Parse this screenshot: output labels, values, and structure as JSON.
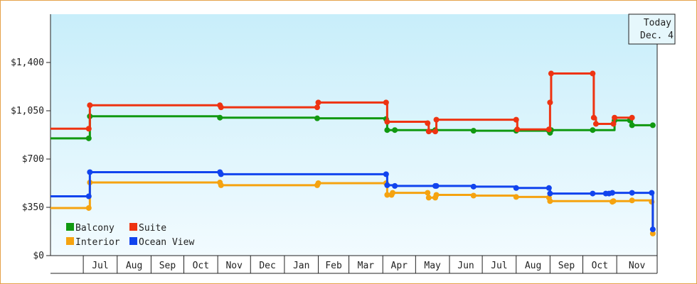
{
  "chart_data": {
    "type": "line",
    "step": true,
    "title": "",
    "xlabel": "",
    "ylabel": "",
    "ylim": [
      0,
      1750
    ],
    "xlim": [
      "2014-06-01",
      "2015-12-08"
    ],
    "yticks": [
      {
        "value": 0,
        "label": "$0"
      },
      {
        "value": 350,
        "label": "$350"
      },
      {
        "value": 700,
        "label": "$700"
      },
      {
        "value": 1050,
        "label": "$1,050"
      },
      {
        "value": 1400,
        "label": "$1,400"
      }
    ],
    "month_ticks": [
      {
        "date": "2014-07-01",
        "label": "Jul"
      },
      {
        "date": "2014-08-01",
        "label": "Aug"
      },
      {
        "date": "2014-09-01",
        "label": "Sep"
      },
      {
        "date": "2014-10-01",
        "label": "Oct"
      },
      {
        "date": "2014-11-01",
        "label": "Nov"
      },
      {
        "date": "2014-12-01",
        "label": "Dec"
      },
      {
        "date": "2015-01-01",
        "label": "Jan"
      },
      {
        "date": "2015-02-01",
        "label": "Feb"
      },
      {
        "date": "2015-03-01",
        "label": "Mar"
      },
      {
        "date": "2015-04-01",
        "label": "Apr"
      },
      {
        "date": "2015-05-01",
        "label": "May"
      },
      {
        "date": "2015-06-01",
        "label": "Jun"
      },
      {
        "date": "2015-07-01",
        "label": "Jul"
      },
      {
        "date": "2015-08-01",
        "label": "Aug"
      },
      {
        "date": "2015-09-01",
        "label": "Sep"
      },
      {
        "date": "2015-10-01",
        "label": "Oct"
      },
      {
        "date": "2015-11-01",
        "label": "Nov"
      }
    ],
    "today": {
      "line1": "Today",
      "line2": "Dec. 4",
      "date": "2015-12-04"
    },
    "legend_position": "bottom-left",
    "grid": false,
    "series": [
      {
        "name": "Balcony",
        "color": "#119911",
        "points": [
          [
            "2014-06-01",
            850
          ],
          [
            "2014-07-06",
            850
          ],
          [
            "2014-07-07",
            1010
          ],
          [
            "2014-11-03",
            1000
          ],
          [
            "2015-01-31",
            995
          ],
          [
            "2015-04-04",
            990
          ],
          [
            "2015-04-05",
            910
          ],
          [
            "2015-04-12",
            910
          ],
          [
            "2015-05-19",
            910
          ],
          [
            "2015-06-23",
            905
          ],
          [
            "2015-08-01",
            905
          ],
          [
            "2015-08-31",
            905
          ],
          [
            "2015-09-01",
            890
          ],
          [
            "2015-09-02",
            910
          ],
          [
            "2015-10-10",
            910
          ],
          [
            "2015-10-30",
            980
          ],
          [
            "2015-11-13",
            980
          ],
          [
            "2015-11-15",
            945
          ],
          [
            "2015-12-04",
            945
          ]
        ]
      },
      {
        "name": "Suite",
        "color": "#ee3311",
        "points": [
          [
            "2014-06-01",
            920
          ],
          [
            "2014-07-06",
            920
          ],
          [
            "2014-07-07",
            1090
          ],
          [
            "2014-11-03",
            1090
          ],
          [
            "2014-11-04",
            1075
          ],
          [
            "2015-01-31",
            1075
          ],
          [
            "2015-02-01",
            1110
          ],
          [
            "2015-04-04",
            1110
          ],
          [
            "2015-04-05",
            970
          ],
          [
            "2015-05-12",
            960
          ],
          [
            "2015-05-13",
            900
          ],
          [
            "2015-05-19",
            900
          ],
          [
            "2015-05-20",
            985
          ],
          [
            "2015-08-01",
            985
          ],
          [
            "2015-08-02",
            915
          ],
          [
            "2015-08-31",
            915
          ],
          [
            "2015-09-01",
            1110
          ],
          [
            "2015-09-02",
            1320
          ],
          [
            "2015-10-10",
            1320
          ],
          [
            "2015-10-11",
            1000
          ],
          [
            "2015-10-13",
            955
          ],
          [
            "2015-10-29",
            955
          ],
          [
            "2015-10-30",
            1000
          ],
          [
            "2015-11-15",
            1000
          ]
        ]
      },
      {
        "name": "Interior",
        "color": "#f5a310",
        "points": [
          [
            "2014-06-01",
            345
          ],
          [
            "2014-07-06",
            345
          ],
          [
            "2014-07-07",
            530
          ],
          [
            "2014-11-03",
            530
          ],
          [
            "2014-11-04",
            510
          ],
          [
            "2015-01-31",
            510
          ],
          [
            "2015-02-01",
            525
          ],
          [
            "2015-04-04",
            525
          ],
          [
            "2015-04-05",
            440
          ],
          [
            "2015-04-09",
            440
          ],
          [
            "2015-04-10",
            455
          ],
          [
            "2015-05-12",
            455
          ],
          [
            "2015-05-13",
            420
          ],
          [
            "2015-05-19",
            420
          ],
          [
            "2015-05-20",
            440
          ],
          [
            "2015-06-23",
            435
          ],
          [
            "2015-08-01",
            425
          ],
          [
            "2015-08-31",
            420
          ],
          [
            "2015-09-01",
            395
          ],
          [
            "2015-10-28",
            390
          ],
          [
            "2015-10-29",
            395
          ],
          [
            "2015-11-15",
            400
          ],
          [
            "2015-12-03",
            390
          ],
          [
            "2015-12-04",
            160
          ]
        ]
      },
      {
        "name": "Ocean View",
        "color": "#1144ee",
        "points": [
          [
            "2014-06-01",
            430
          ],
          [
            "2014-07-06",
            430
          ],
          [
            "2014-07-07",
            605
          ],
          [
            "2014-11-03",
            605
          ],
          [
            "2014-11-04",
            590
          ],
          [
            "2015-04-04",
            590
          ],
          [
            "2015-04-05",
            510
          ],
          [
            "2015-04-12",
            505
          ],
          [
            "2015-05-19",
            505
          ],
          [
            "2015-05-20",
            505
          ],
          [
            "2015-06-23",
            500
          ],
          [
            "2015-08-01",
            490
          ],
          [
            "2015-08-31",
            490
          ],
          [
            "2015-09-01",
            450
          ],
          [
            "2015-10-10",
            450
          ],
          [
            "2015-10-22",
            450
          ],
          [
            "2015-10-25",
            450
          ],
          [
            "2015-10-28",
            455
          ],
          [
            "2015-11-15",
            455
          ],
          [
            "2015-12-03",
            455
          ],
          [
            "2015-12-04",
            190
          ]
        ]
      }
    ]
  }
}
